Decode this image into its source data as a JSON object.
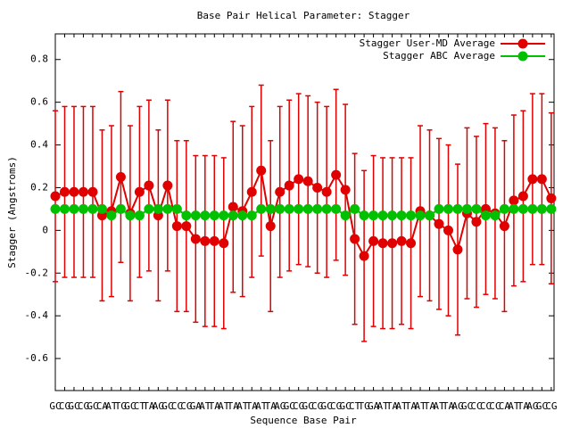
{
  "chart_data": {
    "type": "line",
    "title": "Base Pair Helical Parameter: Stagger",
    "x_label": "Sequence Base Pair",
    "y_label": "Stagger (Angstroms)",
    "categories": [
      "GC",
      "CG",
      "GC",
      "CG",
      "GC",
      "CA",
      "AT",
      "TG",
      "GC",
      "CT",
      "TA",
      "AG",
      "GC",
      "CC",
      "CG",
      "GA",
      "AT",
      "TA",
      "AT",
      "TA",
      "AT",
      "TA",
      "AT",
      "TA",
      "AG",
      "GC",
      "CG",
      "GC",
      "CG",
      "GC",
      "CG",
      "GC",
      "CT",
      "TG",
      "GA",
      "AT",
      "TA",
      "AT",
      "TA",
      "AT",
      "TA",
      "AT",
      "TA",
      "AG",
      "GC",
      "CC",
      "CC",
      "CC",
      "CA",
      "AT",
      "TA",
      "AG",
      "GC",
      "CG"
    ],
    "series": [
      {
        "name": "Stagger User-MD Average",
        "color": "#e00000",
        "values": [
          0.16,
          0.18,
          0.18,
          0.18,
          0.18,
          0.07,
          0.09,
          0.25,
          0.08,
          0.18,
          0.21,
          0.07,
          0.21,
          0.02,
          0.02,
          -0.04,
          -0.05,
          -0.05,
          -0.06,
          0.11,
          0.09,
          0.18,
          0.28,
          0.02,
          0.18,
          0.21,
          0.24,
          0.23,
          0.2,
          0.18,
          0.26,
          0.19,
          -0.04,
          -0.12,
          -0.05,
          -0.06,
          -0.06,
          -0.05,
          -0.06,
          0.09,
          0.07,
          0.03,
          0.0,
          -0.09,
          0.08,
          0.04,
          0.1,
          0.08,
          0.02,
          0.14,
          0.16,
          0.24,
          0.24,
          0.15
        ],
        "errors": [
          0.4,
          0.4,
          0.4,
          0.4,
          0.4,
          0.4,
          0.4,
          0.4,
          0.41,
          0.4,
          0.4,
          0.4,
          0.4,
          0.4,
          0.4,
          0.39,
          0.4,
          0.4,
          0.4,
          0.4,
          0.4,
          0.4,
          0.4,
          0.4,
          0.4,
          0.4,
          0.4,
          0.4,
          0.4,
          0.4,
          0.4,
          0.4,
          0.4,
          0.4,
          0.4,
          0.4,
          0.4,
          0.39,
          0.4,
          0.4,
          0.4,
          0.4,
          0.4,
          0.4,
          0.4,
          0.4,
          0.4,
          0.4,
          0.4,
          0.4,
          0.4,
          0.4,
          0.4,
          0.4
        ]
      },
      {
        "name": "Stagger ABC Average",
        "color": "#00c000",
        "values": [
          0.1,
          0.1,
          0.1,
          0.1,
          0.1,
          0.1,
          0.07,
          0.1,
          0.07,
          0.07,
          0.1,
          0.1,
          0.1,
          0.1,
          0.07,
          0.07,
          0.07,
          0.07,
          0.07,
          0.07,
          0.07,
          0.07,
          0.1,
          0.1,
          0.1,
          0.1,
          0.1,
          0.1,
          0.1,
          0.1,
          0.1,
          0.07,
          0.1,
          0.07,
          0.07,
          0.07,
          0.07,
          0.07,
          0.07,
          0.07,
          0.07,
          0.1,
          0.1,
          0.1,
          0.1,
          0.1,
          0.07,
          0.07,
          0.1,
          0.1,
          0.1,
          0.1,
          0.1,
          0.1
        ]
      }
    ],
    "ylim": [
      -0.75,
      0.92
    ],
    "yticks": [
      -0.6,
      -0.4,
      -0.2,
      0,
      0.2,
      0.4,
      0.6,
      0.8
    ],
    "legend": "top-right"
  }
}
